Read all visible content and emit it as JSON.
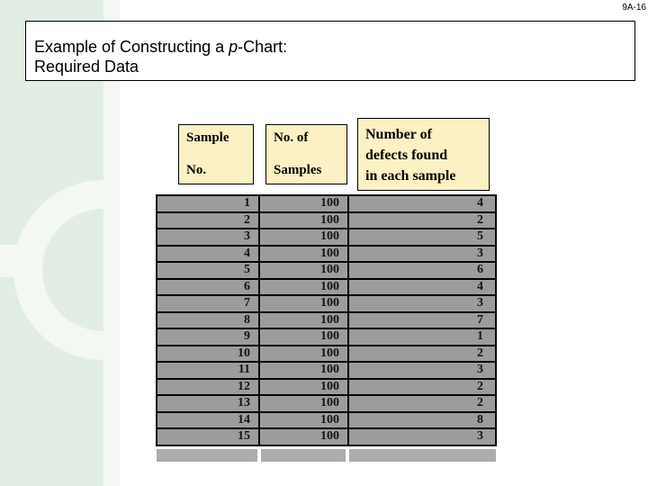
{
  "slide": {
    "page_number": "9A-16",
    "title": {
      "prefix": "Example of Constructing a ",
      "italic": "p",
      "suffix": "-Chart:",
      "line2": "Required Data"
    }
  },
  "table": {
    "headers": {
      "col1": {
        "lines": [
          "Sample",
          "No."
        ]
      },
      "col2": {
        "lines": [
          "No. of",
          "Samples"
        ]
      },
      "col3": {
        "lines": [
          "Number of",
          "defects found",
          "in each sample"
        ]
      }
    },
    "rows": [
      [
        "1",
        "100",
        "4"
      ],
      [
        "2",
        "100",
        "2"
      ],
      [
        "3",
        "100",
        "5"
      ],
      [
        "4",
        "100",
        "3"
      ],
      [
        "5",
        "100",
        "6"
      ],
      [
        "6",
        "100",
        "4"
      ],
      [
        "7",
        "100",
        "3"
      ],
      [
        "8",
        "100",
        "7"
      ],
      [
        "9",
        "100",
        "1"
      ],
      [
        "10",
        "100",
        "2"
      ],
      [
        "11",
        "100",
        "3"
      ],
      [
        "12",
        "100",
        "2"
      ],
      [
        "13",
        "100",
        "2"
      ],
      [
        "14",
        "100",
        "8"
      ],
      [
        "15",
        "100",
        "3"
      ]
    ]
  },
  "colors": {
    "header_fill": "#fbf1c4",
    "cell_fill": "#9c9c9c",
    "empty_row_fill": "#acacac",
    "band_green": "#e2eee4",
    "band_light": "#f3f8f2",
    "border": "#000000"
  }
}
